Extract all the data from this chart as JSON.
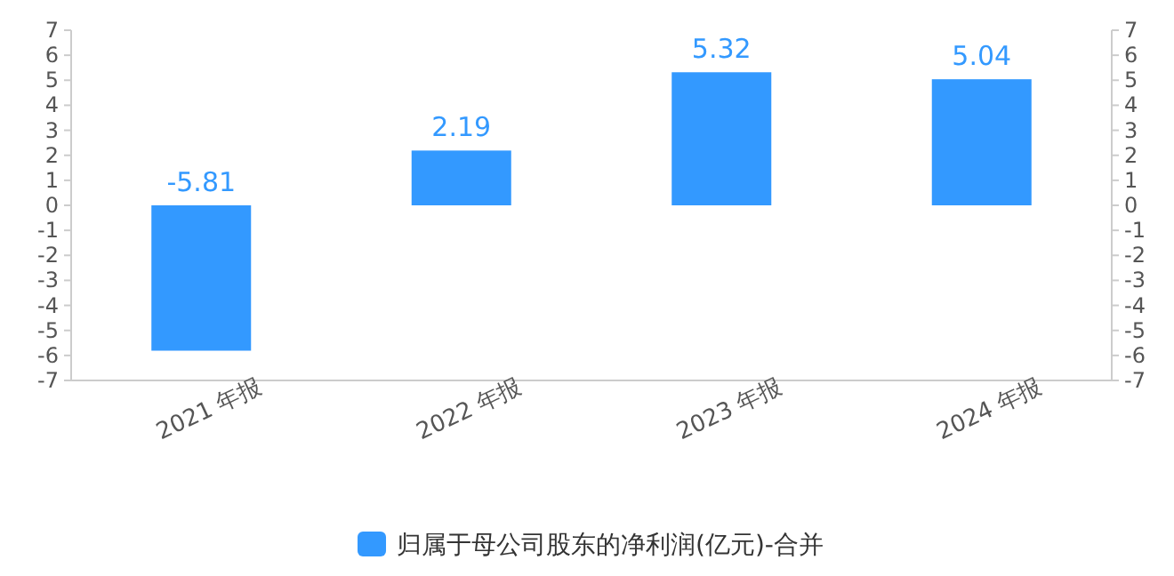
{
  "chart_data": {
    "type": "bar",
    "categories": [
      "2021 年报",
      "2022 年报",
      "2023 年报",
      "2024 年报"
    ],
    "series": [
      {
        "name": "归属于母公司股东的净利润(亿元)-合并",
        "color": "#3399ff",
        "values": [
          -5.81,
          2.19,
          5.32,
          5.04
        ]
      }
    ],
    "ylim": [
      -7,
      7
    ],
    "yticks": [
      7,
      6,
      5,
      4,
      3,
      2,
      1,
      0,
      -1,
      -2,
      -3,
      -4,
      -5,
      -6,
      -7
    ],
    "y2lim": [
      -7,
      7
    ],
    "y2ticks": [
      7,
      6,
      5,
      4,
      3,
      2,
      1,
      0,
      -1,
      -2,
      -3,
      -4,
      -5,
      -6,
      -7
    ],
    "data_labels": true,
    "legend": "bottom",
    "grid": false
  }
}
